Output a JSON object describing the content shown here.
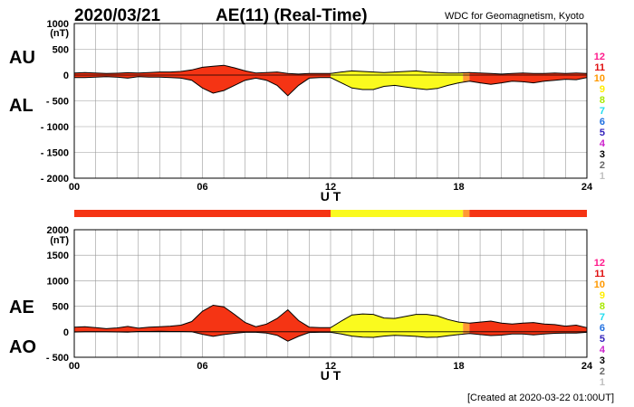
{
  "header": {
    "date": "2020/03/21",
    "index_title": "AE(11) (Real-Time)",
    "source": "WDC for Geomagnetism, Kyoto"
  },
  "footer": {
    "created": "[Created at 2020-03-22 01:00UT]"
  },
  "legend": {
    "items": [
      {
        "label": "12",
        "color": "#ff1a8c"
      },
      {
        "label": "11",
        "color": "#e01010"
      },
      {
        "label": "10",
        "color": "#ff9900"
      },
      {
        "label": "9",
        "color": "#ffee00"
      },
      {
        "label": "8",
        "color": "#a8e800"
      },
      {
        "label": "7",
        "color": "#22ddee"
      },
      {
        "label": "6",
        "color": "#1e6fe0"
      },
      {
        "label": "5",
        "color": "#3322bb"
      },
      {
        "label": "4",
        "color": "#cc22cc"
      },
      {
        "label": "3",
        "color": "#000000"
      },
      {
        "label": "2",
        "color": "#666666"
      },
      {
        "label": "1",
        "color": "#c0c0c0"
      }
    ]
  },
  "colors": {
    "red": "#f53414",
    "yellow": "#fafa1e",
    "orange": "#ff9933",
    "grid": "#999999"
  },
  "chart_data": [
    {
      "type": "area",
      "panel": "AU/AL",
      "xlabel": "U T",
      "ylabel_unit": "(nT)",
      "series_labels": [
        "AU",
        "AL"
      ],
      "xlim": [
        0,
        24
      ],
      "ylim": [
        -2000,
        1000
      ],
      "xticks": [
        "00",
        "06",
        "12",
        "18",
        "24"
      ],
      "yticks": [
        "1000",
        "500",
        "0",
        "- 500",
        "- 1000",
        "- 1500",
        "- 2000"
      ],
      "ytick_values": [
        1000,
        500,
        0,
        -500,
        -1000,
        -1500,
        -2000
      ],
      "grid": true,
      "x": [
        0,
        0.5,
        1,
        1.5,
        2,
        2.5,
        3,
        3.5,
        4,
        4.5,
        5,
        5.5,
        6,
        6.5,
        7,
        7.5,
        8,
        8.5,
        9,
        9.5,
        10,
        10.5,
        11,
        11.5,
        12,
        12.5,
        13,
        13.5,
        14,
        14.5,
        15,
        15.5,
        16,
        16.5,
        17,
        17.5,
        18,
        18.5,
        19,
        19.5,
        20,
        20.5,
        21,
        21.5,
        22,
        22.5,
        23,
        23.5,
        24
      ],
      "au": [
        40,
        50,
        40,
        30,
        35,
        45,
        40,
        50,
        60,
        60,
        70,
        100,
        150,
        170,
        190,
        140,
        80,
        40,
        50,
        60,
        30,
        20,
        30,
        30,
        30,
        60,
        80,
        70,
        60,
        50,
        60,
        70,
        80,
        60,
        50,
        40,
        40,
        50,
        40,
        30,
        20,
        30,
        40,
        30,
        30,
        40,
        30,
        40,
        30
      ],
      "al": [
        -50,
        -50,
        -40,
        -30,
        -40,
        -60,
        -30,
        -40,
        -40,
        -50,
        -60,
        -100,
        -250,
        -350,
        -300,
        -200,
        -100,
        -60,
        -100,
        -200,
        -400,
        -200,
        -60,
        -50,
        -50,
        -150,
        -250,
        -280,
        -280,
        -220,
        -200,
        -230,
        -260,
        -280,
        -260,
        -200,
        -150,
        -120,
        -150,
        -180,
        -150,
        -120,
        -130,
        -150,
        -120,
        -100,
        -80,
        -90,
        -50
      ],
      "activity": [
        {
          "from": 0,
          "to": 12,
          "level": "11"
        },
        {
          "from": 12,
          "to": 18.2,
          "level": "9"
        },
        {
          "from": 18.2,
          "to": 18.5,
          "level": "10"
        },
        {
          "from": 18.5,
          "to": 24,
          "level": "11"
        }
      ]
    },
    {
      "type": "area",
      "panel": "AE/AO",
      "xlabel": "U T",
      "ylabel_unit": "(nT)",
      "series_labels": [
        "AE",
        "AO"
      ],
      "xlim": [
        0,
        24
      ],
      "ylim": [
        -500,
        2000
      ],
      "xticks": [
        "00",
        "06",
        "12",
        "18",
        "24"
      ],
      "yticks": [
        "2000",
        "1500",
        "1000",
        "500",
        "0",
        "- 500"
      ],
      "ytick_values": [
        2000,
        1500,
        1000,
        500,
        0,
        -500
      ],
      "grid": true,
      "x": [
        0,
        0.5,
        1,
        1.5,
        2,
        2.5,
        3,
        3.5,
        4,
        4.5,
        5,
        5.5,
        6,
        6.5,
        7,
        7.5,
        8,
        8.5,
        9,
        9.5,
        10,
        10.5,
        11,
        11.5,
        12,
        12.5,
        13,
        13.5,
        14,
        14.5,
        15,
        15.5,
        16,
        16.5,
        17,
        17.5,
        18,
        18.5,
        19,
        19.5,
        20,
        20.5,
        21,
        21.5,
        22,
        22.5,
        23,
        23.5,
        24
      ],
      "ae": [
        90,
        100,
        80,
        60,
        75,
        105,
        70,
        90,
        100,
        110,
        130,
        200,
        400,
        520,
        490,
        340,
        180,
        100,
        150,
        260,
        430,
        220,
        90,
        80,
        80,
        210,
        330,
        350,
        340,
        270,
        260,
        300,
        340,
        340,
        310,
        240,
        190,
        170,
        190,
        210,
        170,
        150,
        170,
        180,
        150,
        140,
        110,
        130,
        80
      ],
      "ao": [
        -5,
        0,
        0,
        0,
        -3,
        -8,
        5,
        5,
        10,
        5,
        5,
        0,
        -50,
        -90,
        -55,
        -30,
        -10,
        -10,
        -25,
        -70,
        -185,
        -90,
        -15,
        -10,
        -10,
        -45,
        -85,
        -105,
        -110,
        -85,
        -70,
        -80,
        -90,
        -110,
        -105,
        -80,
        -55,
        -35,
        -55,
        -75,
        -65,
        -45,
        -45,
        -60,
        -45,
        -30,
        -25,
        -25,
        -10
      ],
      "activity": [
        {
          "from": 0,
          "to": 12,
          "level": "11"
        },
        {
          "from": 12,
          "to": 18.2,
          "level": "9"
        },
        {
          "from": 18.2,
          "to": 18.5,
          "level": "10"
        },
        {
          "from": 18.5,
          "to": 24,
          "level": "11"
        }
      ]
    }
  ]
}
